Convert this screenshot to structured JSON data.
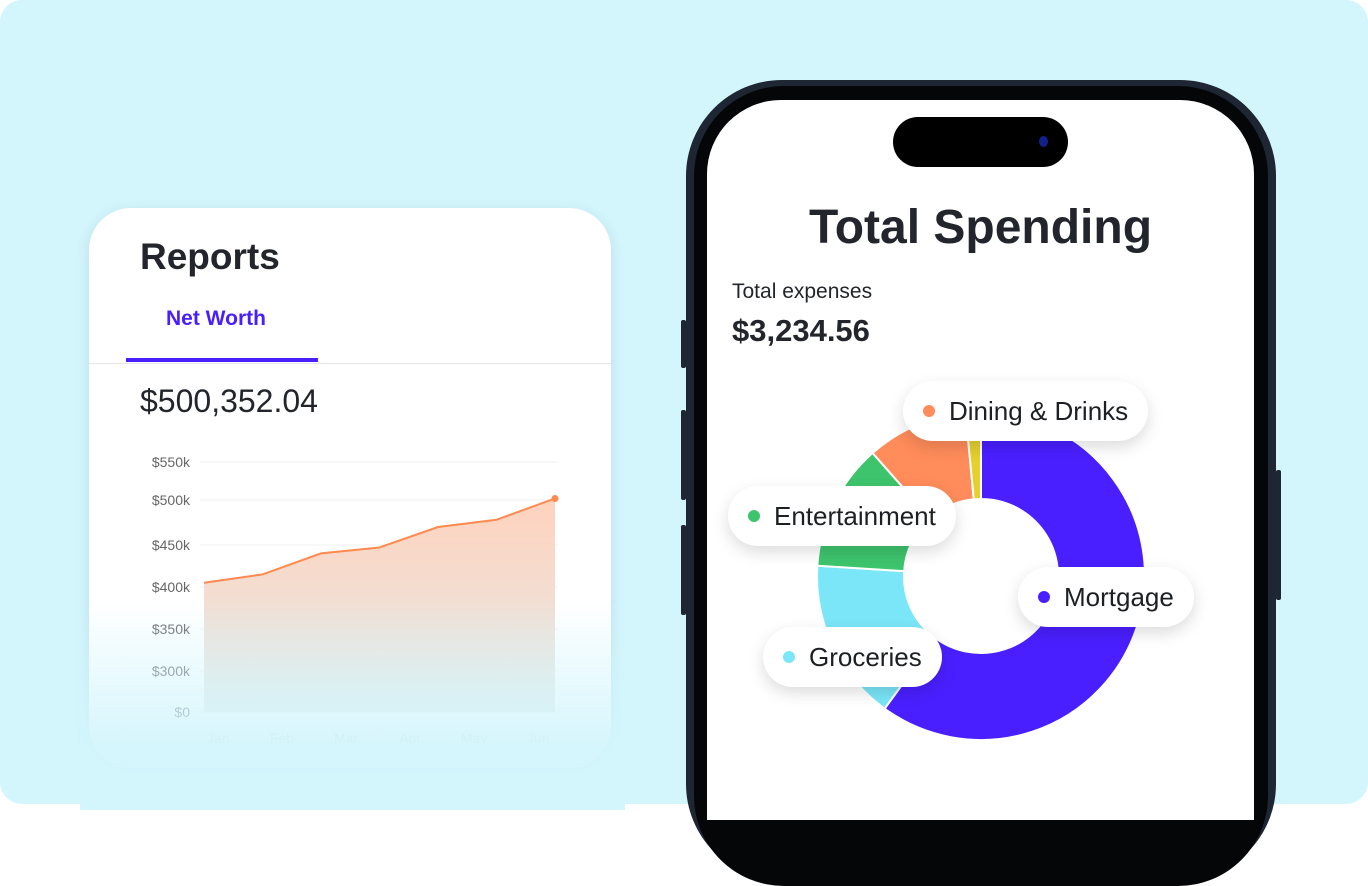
{
  "reports": {
    "title": "Reports",
    "tab": "Net Worth",
    "value": "$500,352.04"
  },
  "spending": {
    "title": "Total Spending",
    "expenses_label": "Total expenses",
    "expenses_value": "$3,234.56"
  },
  "colors": {
    "accent": "#4a1fff",
    "line": "#ff8a50",
    "background": "#d3f5fc"
  },
  "chart_data": [
    {
      "type": "area",
      "ytick_labels": [
        "$550k",
        "$500k",
        "$450k",
        "$400k",
        "$350k",
        "$300k",
        "$0"
      ],
      "ytick_values": [
        550000,
        500000,
        450000,
        400000,
        350000,
        300000,
        0
      ],
      "xtick_labels": [
        "Jan",
        "Feb",
        "Mar",
        "Apr",
        "May",
        "Jun"
      ],
      "values": [
        405000,
        415000,
        440000,
        447000,
        470000,
        478000,
        502000
      ],
      "grid": true,
      "color": "#ff8a50"
    },
    {
      "type": "pie",
      "donut": true,
      "categories": [
        "Mortgage",
        "Groceries",
        "Entertainment",
        "Dining & Drinks",
        ""
      ],
      "values": [
        60,
        16,
        12.5,
        10,
        1.5
      ],
      "colors": [
        "#4a1fff",
        "#7ae6f8",
        "#3ec46d",
        "#ff8c5a",
        "#e5d02c"
      ],
      "legend": [
        {
          "label": "Mortgage",
          "color": "#4a1fff"
        },
        {
          "label": "Groceries",
          "color": "#7ae6f8"
        },
        {
          "label": "Entertainment",
          "color": "#3ec46d"
        },
        {
          "label": "Dining & Drinks",
          "color": "#ff8c5a"
        }
      ]
    }
  ]
}
